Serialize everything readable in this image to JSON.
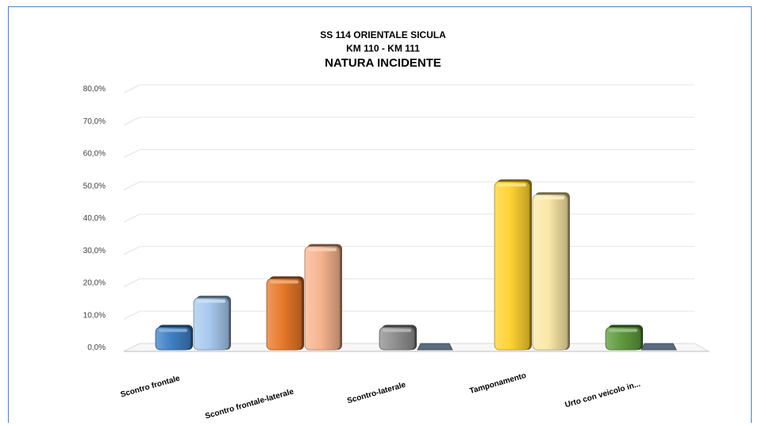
{
  "chart_data": {
    "type": "bar",
    "title_lines": [
      "SS 114 ORIENTALE SICULA",
      "KM 110  - KM 111",
      "NATURA INCIDENTE"
    ],
    "categories": [
      "Scontro frontale",
      "Scontro frontale-laterale",
      "Scontro-laterale",
      "Tamponamento",
      "Urto con veicolo in..."
    ],
    "series": [
      {
        "values": [
          7.0,
          22.0,
          7.0,
          52.0,
          7.0
        ],
        "colors": [
          "#3f7fc4",
          "#e8782a",
          "#8f8f8f",
          "#ffd233",
          "#5f9a3e"
        ]
      },
      {
        "values": [
          16.0,
          32.0,
          0.0,
          48.0,
          0.0
        ],
        "colors": [
          "#a7c9ef",
          "#f7b48f",
          "#5a6b7d",
          "#fbe8a8",
          "#5a6b7d"
        ]
      }
    ],
    "y_ticks": [
      "0,0%",
      "10,0%",
      "20,0%",
      "30,0%",
      "40,0%",
      "50,0%",
      "60,0%",
      "70,0%",
      "80,0%"
    ],
    "ylim": [
      0,
      80
    ],
    "grid": true,
    "legend": "none"
  }
}
